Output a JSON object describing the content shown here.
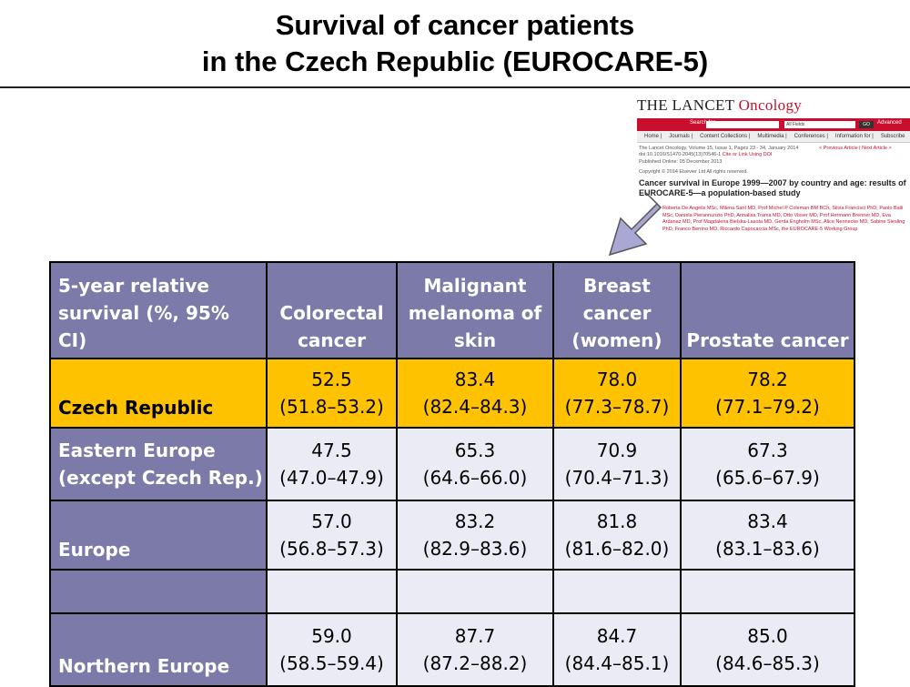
{
  "title": {
    "line1": "Survival of cancer patients",
    "line2": "in the Czech Republic (EUROCARE-5)"
  },
  "lancet": {
    "brand": "THE LANCET",
    "brand_sub": "Oncology",
    "search_label": "Search for",
    "search_scope": "All Fields",
    "go_label": "GO",
    "advanced_label": "Advanced",
    "nav_items": [
      "Home",
      "Journals",
      "Content Collections",
      "Multimedia",
      "Conferences",
      "Information for",
      "Subscribe"
    ],
    "citation": "The Lancet Oncology, Volume 15, Issue 1, Pages 23 - 34, January 2014",
    "doi": "doi:10.1016/S1470-2045(13)70546-1",
    "cite_link": "Cite or Link Using DOI",
    "prev_next": "< Previous Article | Next Article >",
    "published": "Published Online: 05 December 2013",
    "copyright": "Copyright © 2014 Elsevier Ltd All rights reserved.",
    "article_title": "Cancer survival in Europe 1999—2007 by country and age: results of EUROCARE-5—a population-based study",
    "authors": "Roberta De Angelis MSc, Milena Sant MD, Prof Michel P Coleman BM BCh, Silvia Francisci PhD, Paolo Baili MSc, Daniela Pierannunzio PhD, Annalisa Trama MD, Otto Visser MD, Prof Hermann Brenner MD, Eva Ardanaz MD, Prof Magdalena Bielska-Lasota MD, Gerda Engholm MSc, Alice Nennecke MD, Sabine Siesling PhD, Franco Berrino MD, Riccardo Capocaccia MSc, the EUROCARE-5 Working Group"
  },
  "table": {
    "header": {
      "label": "5-year relative survival (%, 95% CI)",
      "columns": [
        "Colorectal cancer",
        "Malignant melanoma of skin",
        "Breast cancer (women)",
        "Prostate cancer"
      ]
    },
    "rows": [
      {
        "label": "Czech Republic",
        "highlight": true,
        "cells": [
          {
            "value": "52.5",
            "ci": "(51.8–53.2)"
          },
          {
            "value": "83.4",
            "ci": "(82.4–84.3)"
          },
          {
            "value": "78.0",
            "ci": "(77.3–78.7)"
          },
          {
            "value": "78.2",
            "ci": "(77.1–79.2)"
          }
        ]
      },
      {
        "label": "Eastern Europe (except Czech Rep.)",
        "highlight": false,
        "cells": [
          {
            "value": "47.5",
            "ci": "(47.0–47.9)"
          },
          {
            "value": "65.3",
            "ci": "(64.6–66.0)"
          },
          {
            "value": "70.9",
            "ci": "(70.4–71.3)"
          },
          {
            "value": "67.3",
            "ci": "(65.6–67.9)"
          }
        ]
      },
      {
        "label": "Europe",
        "highlight": false,
        "cells": [
          {
            "value": "57.0",
            "ci": "(56.8–57.3)"
          },
          {
            "value": "83.2",
            "ci": "(82.9–83.6)"
          },
          {
            "value": "81.8",
            "ci": "(81.6–82.0)"
          },
          {
            "value": "83.4",
            "ci": "(83.1–83.6)"
          }
        ]
      },
      {
        "label": "",
        "highlight": false,
        "cells": [
          {
            "value": "",
            "ci": ""
          },
          {
            "value": "",
            "ci": ""
          },
          {
            "value": "",
            "ci": ""
          },
          {
            "value": "",
            "ci": ""
          }
        ]
      },
      {
        "label": "Northern Europe",
        "highlight": false,
        "cells": [
          {
            "value": "59.0",
            "ci": "(58.5–59.4)"
          },
          {
            "value": "87.7",
            "ci": "(87.2–88.2)"
          },
          {
            "value": "84.7",
            "ci": "(84.4–85.1)"
          },
          {
            "value": "85.0",
            "ci": "(84.6–85.3)"
          }
        ]
      }
    ]
  },
  "colors": {
    "header_bg": "#7b7aa8",
    "highlight_bg": "#fec200",
    "cell_bg": "#ebebf5",
    "lancet_red": "#c8102e",
    "arrow_fill": "#a9a8d4"
  }
}
